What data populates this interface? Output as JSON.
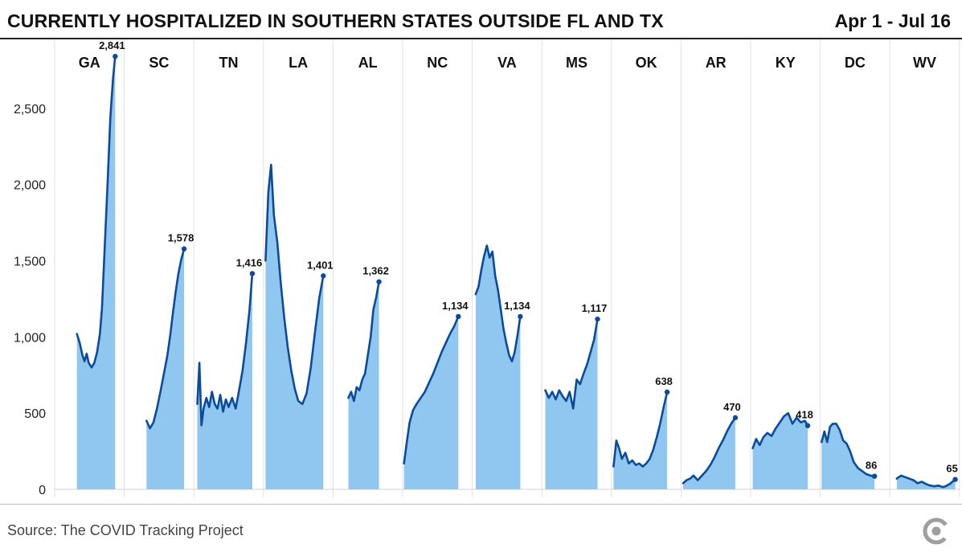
{
  "header": {
    "title": "CURRENTLY HOSPITALIZED IN SOUTHERN STATES OUTSIDE FL AND TX",
    "date_range": "Apr 1 - Jul 16"
  },
  "footer": {
    "source": "Source: The COVID Tracking Project",
    "logo": "covid-tracking-project-logo"
  },
  "chart_data": {
    "type": "area",
    "title": "CURRENTLY HOSPITALIZED IN SOUTHERN STATES OUTSIDE FL AND TX",
    "subtitle": "Apr 1 - Jul 16",
    "xlabel": "",
    "ylabel": "",
    "ylim": [
      0,
      2900
    ],
    "y_ticks": [
      0,
      500,
      1000,
      1500,
      2000,
      2500
    ],
    "y_tick_labels": [
      "0",
      "500",
      "1,000",
      "1,500",
      "2,000",
      "2,500"
    ],
    "grid": "vertical panel separators",
    "layout": "small multiples, one panel per state, shared y axis",
    "colors": {
      "fill": "#90c7f0",
      "line": "#0d4a98"
    },
    "series": [
      {
        "name": "GA",
        "last_value": 2841,
        "last_label": "2,841",
        "points": [
          [
            0.32,
            1020
          ],
          [
            0.36,
            960
          ],
          [
            0.4,
            880
          ],
          [
            0.43,
            840
          ],
          [
            0.46,
            890
          ],
          [
            0.49,
            830
          ],
          [
            0.53,
            800
          ],
          [
            0.57,
            830
          ],
          [
            0.61,
            900
          ],
          [
            0.65,
            1020
          ],
          [
            0.68,
            1190
          ],
          [
            0.72,
            1600
          ],
          [
            0.76,
            2000
          ],
          [
            0.8,
            2440
          ],
          [
            0.84,
            2700
          ],
          [
            0.87,
            2841
          ]
        ]
      },
      {
        "name": "SC",
        "last_value": 1578,
        "last_label": "1,578",
        "points": [
          [
            0.32,
            450
          ],
          [
            0.37,
            400
          ],
          [
            0.42,
            440
          ],
          [
            0.47,
            530
          ],
          [
            0.52,
            640
          ],
          [
            0.57,
            760
          ],
          [
            0.62,
            880
          ],
          [
            0.66,
            1010
          ],
          [
            0.7,
            1160
          ],
          [
            0.74,
            1300
          ],
          [
            0.78,
            1420
          ],
          [
            0.82,
            1510
          ],
          [
            0.86,
            1578
          ]
        ]
      },
      {
        "name": "TN",
        "last_value": 1416,
        "last_label": "1,416",
        "points": [
          [
            0.05,
            560
          ],
          [
            0.08,
            830
          ],
          [
            0.11,
            420
          ],
          [
            0.14,
            530
          ],
          [
            0.18,
            600
          ],
          [
            0.22,
            540
          ],
          [
            0.26,
            640
          ],
          [
            0.3,
            560
          ],
          [
            0.34,
            530
          ],
          [
            0.38,
            620
          ],
          [
            0.42,
            510
          ],
          [
            0.46,
            590
          ],
          [
            0.5,
            540
          ],
          [
            0.55,
            600
          ],
          [
            0.6,
            530
          ],
          [
            0.65,
            650
          ],
          [
            0.7,
            780
          ],
          [
            0.75,
            960
          ],
          [
            0.8,
            1180
          ],
          [
            0.84,
            1416
          ]
        ]
      },
      {
        "name": "LA",
        "last_value": 1401,
        "last_label": "1,401",
        "points": [
          [
            0.03,
            1500
          ],
          [
            0.07,
            1950
          ],
          [
            0.11,
            2130
          ],
          [
            0.15,
            1800
          ],
          [
            0.2,
            1620
          ],
          [
            0.25,
            1350
          ],
          [
            0.3,
            1120
          ],
          [
            0.35,
            930
          ],
          [
            0.4,
            780
          ],
          [
            0.45,
            660
          ],
          [
            0.5,
            580
          ],
          [
            0.56,
            560
          ],
          [
            0.62,
            630
          ],
          [
            0.68,
            800
          ],
          [
            0.74,
            1030
          ],
          [
            0.8,
            1250
          ],
          [
            0.86,
            1401
          ]
        ]
      },
      {
        "name": "AL",
        "last_value": 1362,
        "last_label": "1,362",
        "points": [
          [
            0.22,
            600
          ],
          [
            0.26,
            640
          ],
          [
            0.3,
            580
          ],
          [
            0.34,
            670
          ],
          [
            0.38,
            650
          ],
          [
            0.42,
            720
          ],
          [
            0.46,
            760
          ],
          [
            0.5,
            880
          ],
          [
            0.54,
            1000
          ],
          [
            0.58,
            1180
          ],
          [
            0.62,
            1260
          ],
          [
            0.66,
            1362
          ]
        ]
      },
      {
        "name": "NC",
        "last_value": 1134,
        "last_label": "1,134",
        "points": [
          [
            0.02,
            170
          ],
          [
            0.06,
            310
          ],
          [
            0.1,
            440
          ],
          [
            0.15,
            520
          ],
          [
            0.2,
            560
          ],
          [
            0.26,
            600
          ],
          [
            0.32,
            640
          ],
          [
            0.38,
            700
          ],
          [
            0.44,
            760
          ],
          [
            0.5,
            830
          ],
          [
            0.56,
            900
          ],
          [
            0.62,
            960
          ],
          [
            0.68,
            1020
          ],
          [
            0.74,
            1070
          ],
          [
            0.8,
            1134
          ]
        ]
      },
      {
        "name": "VA",
        "last_value": 1134,
        "last_label": "1,134",
        "points": [
          [
            0.05,
            1280
          ],
          [
            0.09,
            1330
          ],
          [
            0.13,
            1440
          ],
          [
            0.17,
            1530
          ],
          [
            0.21,
            1600
          ],
          [
            0.25,
            1520
          ],
          [
            0.29,
            1560
          ],
          [
            0.33,
            1400
          ],
          [
            0.37,
            1310
          ],
          [
            0.41,
            1180
          ],
          [
            0.45,
            1050
          ],
          [
            0.49,
            960
          ],
          [
            0.53,
            880
          ],
          [
            0.57,
            840
          ],
          [
            0.61,
            900
          ],
          [
            0.65,
            1010
          ],
          [
            0.69,
            1134
          ]
        ]
      },
      {
        "name": "MS",
        "last_value": 1117,
        "last_label": "1,117",
        "points": [
          [
            0.05,
            650
          ],
          [
            0.1,
            600
          ],
          [
            0.15,
            640
          ],
          [
            0.2,
            590
          ],
          [
            0.25,
            650
          ],
          [
            0.3,
            610
          ],
          [
            0.35,
            580
          ],
          [
            0.4,
            640
          ],
          [
            0.45,
            530
          ],
          [
            0.5,
            720
          ],
          [
            0.55,
            690
          ],
          [
            0.6,
            760
          ],
          [
            0.65,
            820
          ],
          [
            0.7,
            900
          ],
          [
            0.75,
            980
          ],
          [
            0.8,
            1117
          ]
        ]
      },
      {
        "name": "OK",
        "last_value": 638,
        "last_label": "638",
        "points": [
          [
            0.03,
            150
          ],
          [
            0.07,
            320
          ],
          [
            0.11,
            270
          ],
          [
            0.15,
            200
          ],
          [
            0.2,
            240
          ],
          [
            0.25,
            170
          ],
          [
            0.3,
            190
          ],
          [
            0.35,
            160
          ],
          [
            0.4,
            170
          ],
          [
            0.45,
            150
          ],
          [
            0.5,
            170
          ],
          [
            0.55,
            200
          ],
          [
            0.6,
            260
          ],
          [
            0.65,
            340
          ],
          [
            0.7,
            430
          ],
          [
            0.75,
            540
          ],
          [
            0.8,
            638
          ]
        ]
      },
      {
        "name": "AR",
        "last_value": 470,
        "last_label": "470",
        "points": [
          [
            0.03,
            40
          ],
          [
            0.08,
            60
          ],
          [
            0.13,
            70
          ],
          [
            0.18,
            90
          ],
          [
            0.24,
            60
          ],
          [
            0.3,
            90
          ],
          [
            0.36,
            120
          ],
          [
            0.42,
            160
          ],
          [
            0.48,
            210
          ],
          [
            0.54,
            270
          ],
          [
            0.6,
            320
          ],
          [
            0.66,
            380
          ],
          [
            0.72,
            430
          ],
          [
            0.78,
            470
          ]
        ]
      },
      {
        "name": "KY",
        "last_value": 418,
        "last_label": "418",
        "points": [
          [
            0.03,
            270
          ],
          [
            0.08,
            330
          ],
          [
            0.13,
            290
          ],
          [
            0.18,
            340
          ],
          [
            0.24,
            370
          ],
          [
            0.3,
            350
          ],
          [
            0.36,
            400
          ],
          [
            0.42,
            440
          ],
          [
            0.48,
            480
          ],
          [
            0.54,
            500
          ],
          [
            0.6,
            430
          ],
          [
            0.66,
            470
          ],
          [
            0.72,
            440
          ],
          [
            0.78,
            450
          ],
          [
            0.82,
            418
          ]
        ]
      },
      {
        "name": "DC",
        "last_value": 86,
        "last_label": "86",
        "points": [
          [
            0.02,
            310
          ],
          [
            0.06,
            380
          ],
          [
            0.1,
            310
          ],
          [
            0.14,
            410
          ],
          [
            0.18,
            430
          ],
          [
            0.23,
            430
          ],
          [
            0.28,
            390
          ],
          [
            0.33,
            320
          ],
          [
            0.38,
            300
          ],
          [
            0.43,
            250
          ],
          [
            0.48,
            180
          ],
          [
            0.54,
            140
          ],
          [
            0.6,
            120
          ],
          [
            0.66,
            100
          ],
          [
            0.72,
            90
          ],
          [
            0.78,
            86
          ]
        ]
      },
      {
        "name": "WV",
        "last_value": 65,
        "last_label": "65",
        "points": [
          [
            0.1,
            70
          ],
          [
            0.16,
            90
          ],
          [
            0.22,
            80
          ],
          [
            0.28,
            70
          ],
          [
            0.34,
            60
          ],
          [
            0.4,
            40
          ],
          [
            0.46,
            50
          ],
          [
            0.52,
            35
          ],
          [
            0.58,
            25
          ],
          [
            0.64,
            20
          ],
          [
            0.7,
            25
          ],
          [
            0.76,
            15
          ],
          [
            0.8,
            20
          ],
          [
            0.86,
            35
          ],
          [
            0.9,
            50
          ],
          [
            0.94,
            65
          ]
        ]
      }
    ]
  }
}
